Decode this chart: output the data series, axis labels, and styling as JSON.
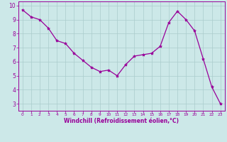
{
  "x": [
    0,
    1,
    2,
    3,
    4,
    5,
    6,
    7,
    8,
    9,
    10,
    11,
    12,
    13,
    14,
    15,
    16,
    17,
    18,
    19,
    20,
    21,
    22,
    23
  ],
  "y": [
    9.7,
    9.2,
    9.0,
    8.4,
    7.5,
    7.3,
    6.6,
    6.1,
    5.6,
    5.3,
    5.4,
    5.0,
    5.8,
    6.4,
    6.5,
    6.6,
    7.1,
    8.8,
    9.6,
    9.0,
    8.2,
    6.2,
    4.2,
    3.0
  ],
  "line_color": "#990099",
  "marker": "*",
  "marker_size": 3,
  "bg_color": "#cce8e8",
  "grid_color": "#aacccc",
  "xlabel": "Windchill (Refroidissement éolien,°C)",
  "xlabel_color": "#990099",
  "tick_color": "#990099",
  "label_color": "#990099",
  "ylim": [
    2.5,
    10.3
  ],
  "xlim": [
    -0.5,
    23.5
  ],
  "yticks": [
    3,
    4,
    5,
    6,
    7,
    8,
    9,
    10
  ],
  "xticks": [
    0,
    1,
    2,
    3,
    4,
    5,
    6,
    7,
    8,
    9,
    10,
    11,
    12,
    13,
    14,
    15,
    16,
    17,
    18,
    19,
    20,
    21,
    22,
    23
  ],
  "spine_color": "#990099"
}
